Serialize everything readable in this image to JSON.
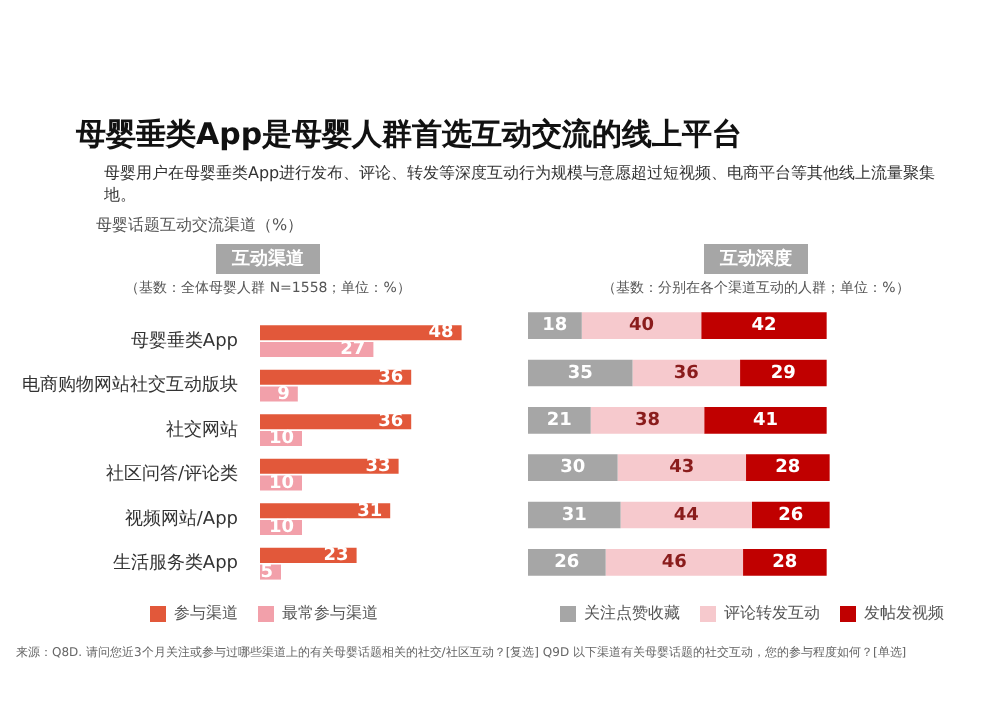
{
  "chart_data": [
    {
      "type": "bar",
      "title": "母婴垂类App是母婴人群首选互动交流的线上平台",
      "subtitle": "母婴用户在母婴垂类App进行发布、评论、转发等深度互动行为规模与意愿超过短视频、电商平台等其他线上流量聚集地。",
      "annotations": [
        "母婴话题互动交流渠道（%）",
        "互动渠道",
        "（基数：全体母婴人群 N=1558；单位：%）",
        "来源：Q8D. 请问您近3个月关注或参与过哪些渠道上的有关母婴话题相关的社交/社区互动？[复选] Q9D 以下渠道有关母婴话题的社交互动，您的参与程度如何？[单选]"
      ],
      "orientation": "horizontal",
      "categories": [
        "母婴垂类App",
        "电商购物网站社交互动版块",
        "社交网站",
        "社区问答/评论类",
        "视频网站/App",
        "生活服务类App"
      ],
      "series": [
        {
          "name": "参与渠道",
          "color": "#e2583a",
          "values": [
            48,
            36,
            36,
            33,
            31,
            23
          ]
        },
        {
          "name": "最常参与渠道",
          "color": "#f2a0aa",
          "values": [
            27,
            9,
            10,
            10,
            10,
            5
          ]
        }
      ],
      "data_labels": true,
      "legend": "bottom",
      "tick_labels": "y"
    },
    {
      "type": "bar",
      "title": "互动深度",
      "subtitle": "（基数：分别在各个渠道互动的人群；单位：%）",
      "orientation": "horizontal",
      "stacked": true,
      "categories": [
        null,
        null,
        null,
        null,
        null,
        null
      ],
      "series": [
        {
          "name": "关注点赞收藏",
          "color": "#a6a6a6",
          "values": [
            18,
            35,
            21,
            30,
            31,
            26
          ]
        },
        {
          "name": "评论转发互动",
          "color": "#f6c9cd",
          "values": [
            40,
            36,
            38,
            43,
            44,
            46
          ]
        },
        {
          "name": "发帖发视频",
          "color": "#c00000",
          "values": [
            42,
            29,
            41,
            28,
            26,
            28
          ]
        }
      ],
      "data_labels": true,
      "legend": "bottom",
      "tick_labels": false
    }
  ]
}
